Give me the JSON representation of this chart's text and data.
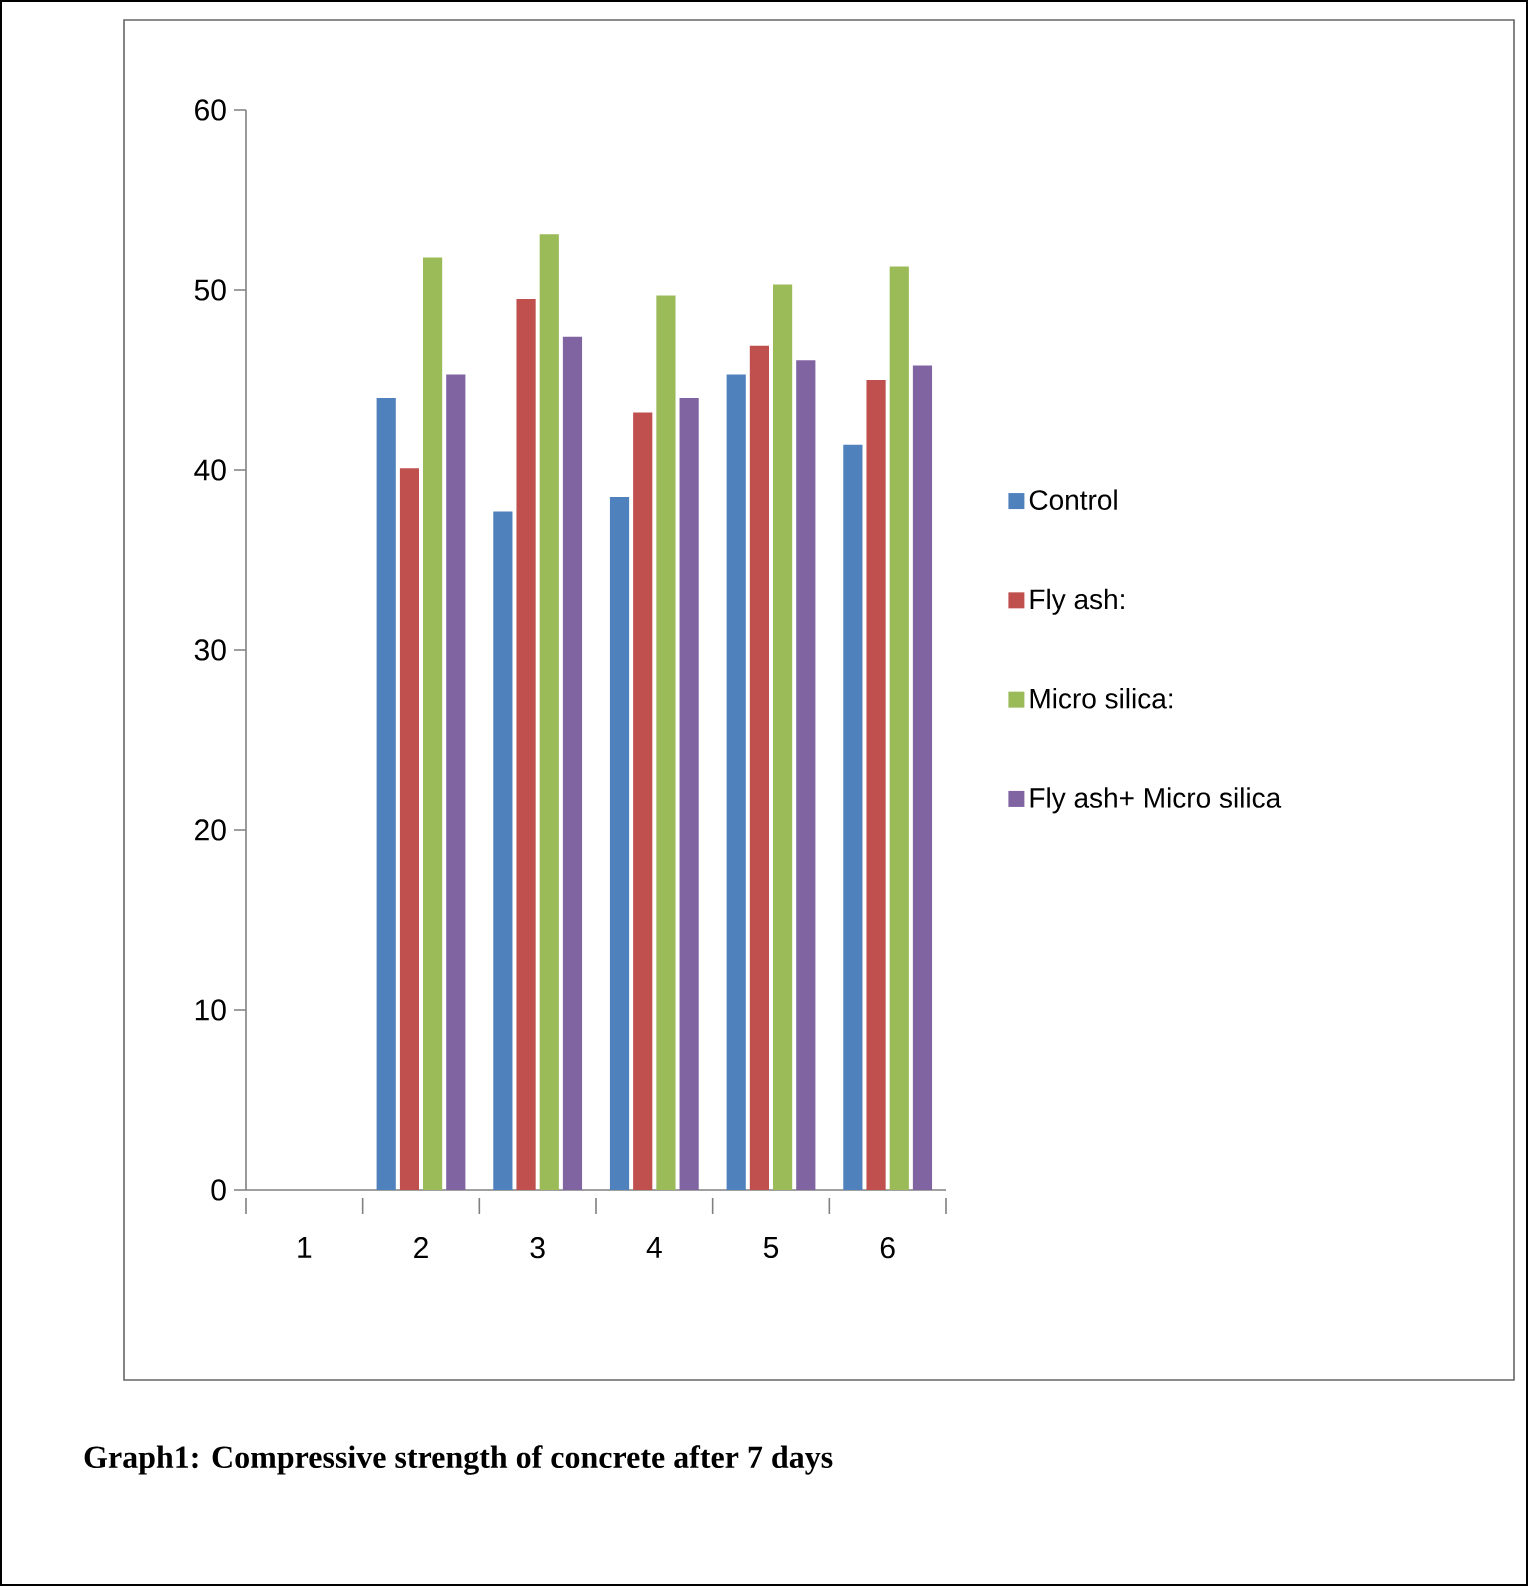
{
  "chart_data": {
    "type": "bar",
    "categories": [
      "1",
      "2",
      "3",
      "4",
      "5",
      "6"
    ],
    "series": [
      {
        "name": "Control",
        "color": "#4f81bd",
        "values": [
          null,
          44.0,
          37.7,
          38.5,
          45.3,
          41.4
        ]
      },
      {
        "name": "Fly ash:",
        "color": "#c0504d",
        "values": [
          null,
          40.1,
          49.5,
          43.2,
          46.9,
          45.0
        ]
      },
      {
        "name": "Micro silica:",
        "color": "#9bbb59",
        "values": [
          null,
          51.8,
          53.1,
          49.7,
          50.3,
          51.3
        ]
      },
      {
        "name": "Fly ash+ Micro silica",
        "color": "#8064a2",
        "values": [
          null,
          45.3,
          47.4,
          44.0,
          46.1,
          45.8
        ]
      }
    ],
    "ylim": [
      0,
      60
    ],
    "yticks": [
      0,
      10,
      20,
      30,
      40,
      50,
      60
    ],
    "legend": "right",
    "grid": false,
    "annotations": [
      "Graph1: Compressive strength of concrete after 7 days"
    ]
  }
}
